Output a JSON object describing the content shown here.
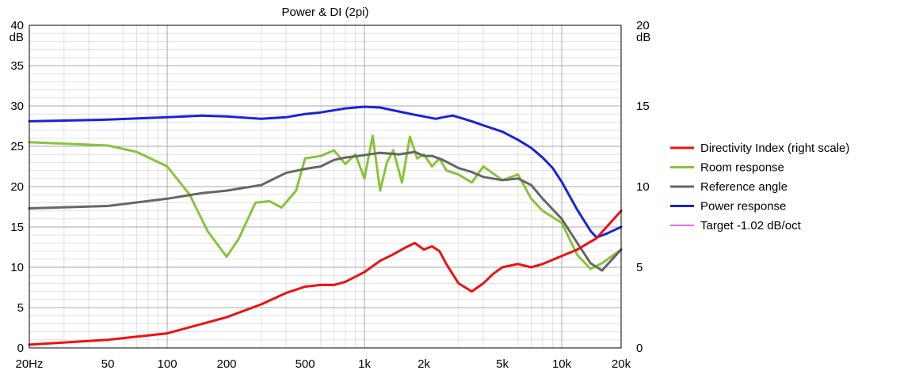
{
  "chart_data": {
    "type": "line",
    "title": "Power & DI (2pi)",
    "x_scale": "log",
    "xlim": [
      20,
      20000
    ],
    "x_tick_labels": [
      {
        "value": 20,
        "label": "20Hz"
      },
      {
        "value": 50,
        "label": "50"
      },
      {
        "value": 100,
        "label": "100"
      },
      {
        "value": 200,
        "label": "200"
      },
      {
        "value": 500,
        "label": "500"
      },
      {
        "value": 1000,
        "label": "1k"
      },
      {
        "value": 2000,
        "label": "2k"
      },
      {
        "value": 5000,
        "label": "5k"
      },
      {
        "value": 10000,
        "label": "10k"
      },
      {
        "value": 20000,
        "label": "20k"
      }
    ],
    "ylim_left": [
      0,
      40
    ],
    "ylim_right": [
      0,
      20
    ],
    "y_left_unit": "dB",
    "y_right_unit": "dB",
    "y_left_ticks": [
      "0",
      "5",
      "10",
      "15",
      "20",
      "25",
      "30",
      "35",
      "40"
    ],
    "y_right_ticks": [
      "0",
      "5",
      "10",
      "15",
      "20"
    ],
    "grid": true,
    "legend_position": "right",
    "series": [
      {
        "name": "Directivity Index (right scale)",
        "color": "#ee1111",
        "axis": "right",
        "x": [
          20,
          50,
          100,
          200,
          300,
          400,
          500,
          600,
          700,
          800,
          1000,
          1200,
          1400,
          1600,
          1800,
          2000,
          2200,
          2400,
          2600,
          3000,
          3500,
          4000,
          4500,
          5000,
          6000,
          7000,
          8000,
          10000,
          12000,
          15000,
          20000
        ],
        "values": [
          0.2,
          0.5,
          0.9,
          1.9,
          2.7,
          3.4,
          3.8,
          3.9,
          3.9,
          4.1,
          4.7,
          5.4,
          5.8,
          6.2,
          6.5,
          6.1,
          6.3,
          6.0,
          5.2,
          4.0,
          3.5,
          4.0,
          4.6,
          5.0,
          5.2,
          5.0,
          5.2,
          5.7,
          6.1,
          6.8,
          8.5
        ]
      },
      {
        "name": "Room response",
        "color": "#88c43a",
        "axis": "left",
        "x": [
          20,
          50,
          70,
          100,
          130,
          160,
          200,
          230,
          280,
          330,
          380,
          450,
          500,
          600,
          700,
          800,
          900,
          1000,
          1100,
          1200,
          1300,
          1400,
          1550,
          1700,
          1850,
          2000,
          2200,
          2400,
          2600,
          3000,
          3500,
          4000,
          5000,
          6000,
          7000,
          8000,
          10000,
          12000,
          14000,
          16000,
          20000
        ],
        "values": [
          25.5,
          25.1,
          24.3,
          22.5,
          19.0,
          14.5,
          11.3,
          13.5,
          18.0,
          18.2,
          17.4,
          19.5,
          23.5,
          23.8,
          24.5,
          22.8,
          24.0,
          21.0,
          26.3,
          19.5,
          23.0,
          24.5,
          20.5,
          26.2,
          23.5,
          24.0,
          22.5,
          23.5,
          22.0,
          21.5,
          20.5,
          22.5,
          20.8,
          21.5,
          18.5,
          17.0,
          15.5,
          11.5,
          9.8,
          10.5,
          12.2
        ]
      },
      {
        "name": "Reference angle",
        "color": "#666666",
        "axis": "left",
        "x": [
          20,
          50,
          100,
          150,
          200,
          300,
          400,
          500,
          600,
          700,
          800,
          1000,
          1200,
          1500,
          1800,
          2000,
          2200,
          2500,
          3000,
          3500,
          4000,
          5000,
          6000,
          7000,
          8000,
          10000,
          12000,
          14000,
          16000,
          20000
        ],
        "values": [
          17.3,
          17.6,
          18.5,
          19.2,
          19.5,
          20.2,
          21.7,
          22.2,
          22.5,
          23.3,
          23.6,
          23.9,
          24.2,
          24.0,
          24.3,
          23.8,
          23.8,
          23.3,
          22.3,
          21.8,
          21.2,
          20.8,
          21.0,
          20.2,
          18.5,
          16.0,
          13.0,
          10.5,
          9.6,
          12.2
        ]
      },
      {
        "name": "Power response",
        "color": "#1a24d6",
        "axis": "left",
        "x": [
          20,
          50,
          100,
          150,
          200,
          300,
          400,
          500,
          600,
          800,
          1000,
          1200,
          1500,
          1800,
          2000,
          2300,
          2500,
          2800,
          3000,
          3500,
          4000,
          5000,
          6000,
          7000,
          8000,
          9000,
          10000,
          12000,
          14000,
          15000,
          17000,
          20000
        ],
        "values": [
          28.1,
          28.3,
          28.6,
          28.8,
          28.7,
          28.4,
          28.6,
          29.0,
          29.2,
          29.7,
          29.9,
          29.8,
          29.3,
          28.9,
          28.7,
          28.4,
          28.6,
          28.8,
          28.6,
          28.1,
          27.6,
          26.8,
          25.8,
          24.8,
          23.6,
          22.3,
          20.6,
          17.1,
          14.5,
          13.7,
          14.2,
          15.0
        ]
      },
      {
        "name": "Target -1.02 dB/oct",
        "color": "#ee33ee",
        "axis": "left",
        "x": [],
        "values": []
      }
    ]
  }
}
